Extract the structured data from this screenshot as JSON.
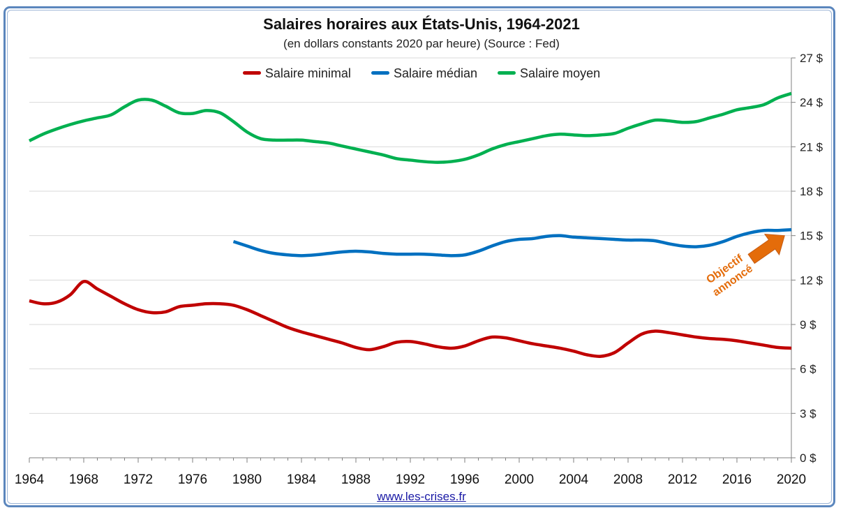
{
  "chart_data": {
    "type": "line",
    "title": "Salaires horaires aux États-Unis, 1964-2021",
    "subtitle": "(en dollars constants 2020 par heure) (Source : Fed)",
    "xlim": [
      1964,
      2020
    ],
    "ylim": [
      0,
      27
    ],
    "x_ticks": [
      "1964",
      "1968",
      "1972",
      "1976",
      "1980",
      "1984",
      "1988",
      "1992",
      "1996",
      "2000",
      "2004",
      "2008",
      "2012",
      "2016",
      "2020"
    ],
    "y_ticks": [
      "0 $",
      "3 $",
      "6 $",
      "9 $",
      "12 $",
      "15 $",
      "18 $",
      "21 $",
      "24 $",
      "27 $"
    ],
    "grid": true,
    "legend_position": "top-center",
    "series": [
      {
        "name": "Salaire minimal",
        "color": "#c00000",
        "x": [
          1964,
          1965,
          1966,
          1967,
          1968,
          1969,
          1970,
          1971,
          1972,
          1973,
          1974,
          1975,
          1976,
          1977,
          1978,
          1979,
          1980,
          1981,
          1982,
          1983,
          1984,
          1985,
          1986,
          1987,
          1988,
          1989,
          1990,
          1991,
          1992,
          1993,
          1994,
          1995,
          1996,
          1997,
          1998,
          1999,
          2000,
          2001,
          2002,
          2003,
          2004,
          2005,
          2006,
          2007,
          2008,
          2009,
          2010,
          2011,
          2012,
          2013,
          2014,
          2015,
          2016,
          2017,
          2018,
          2019,
          2020
        ],
        "values": [
          10.6,
          10.4,
          10.5,
          11.0,
          11.9,
          11.4,
          10.9,
          10.4,
          10.0,
          9.8,
          9.85,
          10.2,
          10.3,
          10.4,
          10.4,
          10.3,
          10.0,
          9.6,
          9.2,
          8.8,
          8.5,
          8.25,
          8.0,
          7.75,
          7.45,
          7.3,
          7.5,
          7.8,
          7.85,
          7.7,
          7.5,
          7.4,
          7.55,
          7.9,
          8.15,
          8.1,
          7.9,
          7.7,
          7.55,
          7.4,
          7.2,
          6.95,
          6.85,
          7.1,
          7.75,
          8.35,
          8.55,
          8.45,
          8.3,
          8.15,
          8.05,
          8.0,
          7.9,
          7.75,
          7.6,
          7.45,
          7.4
        ]
      },
      {
        "name": "Salaire médian",
        "color": "#0070c0",
        "x": [
          1979,
          1980,
          1981,
          1982,
          1983,
          1984,
          1985,
          1986,
          1987,
          1988,
          1989,
          1990,
          1991,
          1992,
          1993,
          1994,
          1995,
          1996,
          1997,
          1998,
          1999,
          2000,
          2001,
          2002,
          2003,
          2004,
          2005,
          2006,
          2007,
          2008,
          2009,
          2010,
          2011,
          2012,
          2013,
          2014,
          2015,
          2016,
          2017,
          2018,
          2019,
          2020
        ],
        "values": [
          14.6,
          14.3,
          14.0,
          13.8,
          13.7,
          13.65,
          13.7,
          13.8,
          13.9,
          13.95,
          13.9,
          13.8,
          13.75,
          13.75,
          13.75,
          13.7,
          13.65,
          13.7,
          13.95,
          14.3,
          14.6,
          14.75,
          14.8,
          14.95,
          15.0,
          14.9,
          14.85,
          14.8,
          14.75,
          14.7,
          14.7,
          14.65,
          14.45,
          14.3,
          14.25,
          14.35,
          14.6,
          14.95,
          15.2,
          15.35,
          15.35,
          15.4
        ]
      },
      {
        "name": "Salaire moyen",
        "color": "#00b050",
        "x": [
          1964,
          1965,
          1966,
          1967,
          1968,
          1969,
          1970,
          1971,
          1972,
          1973,
          1974,
          1975,
          1976,
          1977,
          1978,
          1979,
          1980,
          1981,
          1982,
          1983,
          1984,
          1985,
          1986,
          1987,
          1988,
          1989,
          1990,
          1991,
          1992,
          1993,
          1994,
          1995,
          1996,
          1997,
          1998,
          1999,
          2000,
          2001,
          2002,
          2003,
          2004,
          2005,
          2006,
          2007,
          2008,
          2009,
          2010,
          2011,
          2012,
          2013,
          2014,
          2015,
          2016,
          2017,
          2018,
          2019,
          2020
        ],
        "values": [
          21.4,
          21.85,
          22.2,
          22.5,
          22.75,
          22.95,
          23.15,
          23.7,
          24.15,
          24.15,
          23.75,
          23.3,
          23.25,
          23.45,
          23.3,
          22.7,
          22.0,
          21.55,
          21.45,
          21.45,
          21.45,
          21.35,
          21.25,
          21.05,
          20.85,
          20.65,
          20.45,
          20.2,
          20.1,
          20.0,
          19.95,
          20.0,
          20.15,
          20.45,
          20.85,
          21.15,
          21.35,
          21.55,
          21.75,
          21.85,
          21.8,
          21.75,
          21.8,
          21.9,
          22.25,
          22.55,
          22.8,
          22.75,
          22.65,
          22.7,
          22.95,
          23.2,
          23.5,
          23.65,
          23.85,
          24.3,
          24.6
        ]
      }
    ],
    "annotations": [
      {
        "text_line1": "Objectif",
        "text_line2": "annoncé",
        "color": "#e46c0a",
        "target_x": 2019.5,
        "target_y": 15.0
      }
    ]
  },
  "footer": {
    "source_link": "www.les-crises.fr"
  }
}
